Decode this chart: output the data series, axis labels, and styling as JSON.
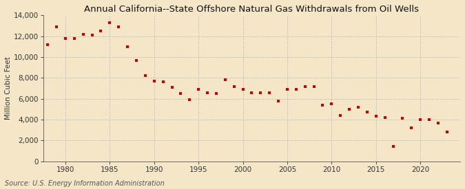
{
  "title": "Annual California--State Offshore Natural Gas Withdrawals from Oil Wells",
  "ylabel": "Million Cubic Feet",
  "source": "Source: U.S. Energy Information Administration",
  "background_color": "#f5e6c8",
  "plot_bg_color": "#f5e6c8",
  "marker_color": "#cc0000",
  "years": [
    1978,
    1979,
    1980,
    1981,
    1982,
    1983,
    1984,
    1985,
    1986,
    1987,
    1988,
    1989,
    1990,
    1991,
    1992,
    1993,
    1994,
    1995,
    1996,
    1997,
    1998,
    1999,
    2000,
    2001,
    2002,
    2003,
    2004,
    2005,
    2006,
    2007,
    2008,
    2009,
    2010,
    2011,
    2012,
    2013,
    2014,
    2015,
    2016,
    2017,
    2018,
    2019,
    2020,
    2021,
    2022,
    2023
  ],
  "values": [
    11200,
    12900,
    11800,
    11800,
    12200,
    12100,
    12500,
    13300,
    12900,
    11000,
    9700,
    8200,
    7700,
    7600,
    7100,
    6500,
    5900,
    6900,
    6600,
    6500,
    7800,
    7200,
    6900,
    6600,
    6600,
    6600,
    5800,
    6900,
    6900,
    7200,
    7200,
    5400,
    5500,
    4400,
    5000,
    5200,
    4700,
    4300,
    4200,
    1400,
    4100,
    3200,
    4000,
    4000,
    3700,
    2800
  ],
  "ylim": [
    0,
    14000
  ],
  "yticks": [
    0,
    2000,
    4000,
    6000,
    8000,
    10000,
    12000,
    14000
  ],
  "xticks": [
    1980,
    1985,
    1990,
    1995,
    2000,
    2005,
    2010,
    2015,
    2020
  ],
  "xlim": [
    1977.5,
    2024.5
  ],
  "grid_color": "#bbbbbb",
  "title_fontsize": 9.5,
  "label_fontsize": 7.5,
  "tick_fontsize": 7.5,
  "source_fontsize": 7
}
